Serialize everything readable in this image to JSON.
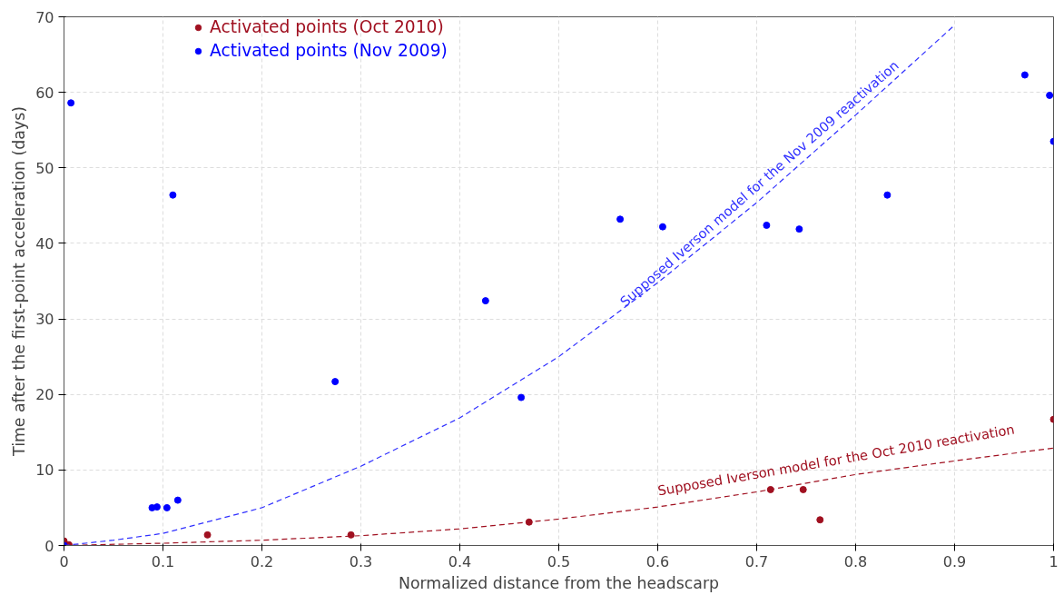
{
  "chart_data": {
    "type": "scatter",
    "xlabel": "Normalized distance from the headscarp",
    "ylabel": "Time after the first-point acceleration (days)",
    "xlim": [
      0,
      1
    ],
    "ylim": [
      0,
      70
    ],
    "xticks": [
      0,
      0.1,
      0.2,
      0.3,
      0.4,
      0.5,
      0.6,
      0.7,
      0.8,
      0.9,
      1
    ],
    "yticks": [
      0,
      10,
      20,
      30,
      40,
      50,
      60,
      70
    ],
    "grid": true,
    "legend": "top left",
    "marker": "circle",
    "series": [
      {
        "name": "Activated points (Oct 2010)",
        "color": "#a01020",
        "x": [
          0,
          0.005,
          0.145,
          0.29,
          0.47,
          0.714,
          0.747,
          0.764,
          1.0
        ],
        "values": [
          0.6,
          0.1,
          1.4,
          1.4,
          3.1,
          7.4,
          7.4,
          3.4,
          16.7
        ]
      },
      {
        "name": "Activated points (Nov 2009)",
        "color": "#0000ff",
        "x": [
          0,
          0.007,
          0.11,
          0.089,
          0.094,
          0.104,
          0.115,
          0.274,
          0.426,
          0.462,
          0.562,
          0.605,
          0.71,
          0.743,
          0.832,
          0.971,
          0.996,
          1.0
        ],
        "values": [
          0,
          58.6,
          46.4,
          5.0,
          5.1,
          5.0,
          6.0,
          21.7,
          32.4,
          19.6,
          43.2,
          42.2,
          42.4,
          41.9,
          46.4,
          62.3,
          59.6,
          53.5
        ]
      },
      {
        "type": "line",
        "line_style": "dashed",
        "marker": "none",
        "color": "#a01020",
        "x": [
          0,
          0.1,
          0.2,
          0.3,
          0.4,
          0.5,
          0.6,
          0.7,
          0.8,
          0.9,
          1.0
        ],
        "values": [
          0,
          0.3,
          0.7,
          1.3,
          2.2,
          3.5,
          5.1,
          7.1,
          9.4,
          11.2,
          12.9
        ]
      },
      {
        "type": "line",
        "line_style": "dashed",
        "marker": "none",
        "color": "#3030ff",
        "x": [
          0,
          0.05,
          0.1,
          0.2,
          0.3,
          0.4,
          0.5,
          0.6,
          0.7,
          0.8,
          0.9
        ],
        "values": [
          0,
          0.7,
          1.6,
          5.0,
          10.5,
          16.9,
          25.0,
          34.8,
          45.4,
          57.0,
          68.9
        ]
      }
    ],
    "annotations": [
      {
        "text": "Supposed Iverson model for the Nov 2009 reactivation",
        "x": 0.717,
        "y": 46.7
      },
      {
        "text": "Supposed Iverson model for the Oct 2010 reactivation",
        "x": 0.784,
        "y": 9.7
      }
    ]
  }
}
